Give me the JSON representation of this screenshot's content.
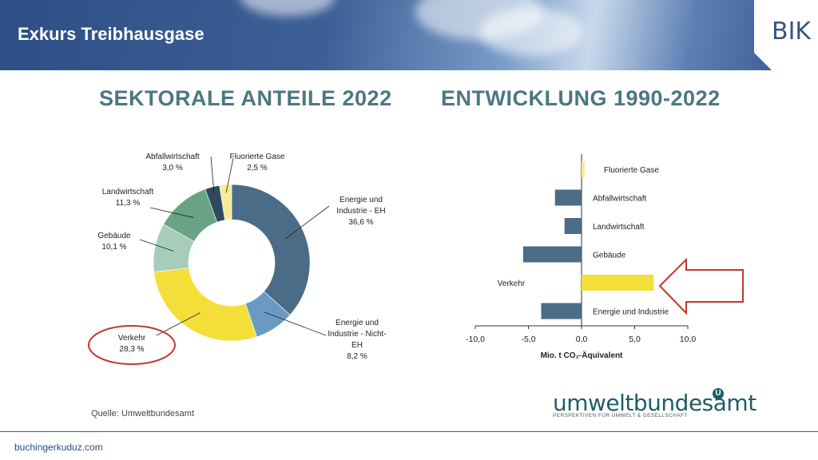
{
  "header": {
    "title": "Exkurs Treibhausgase",
    "logo": "BIK"
  },
  "left_title": "SEKTORALE ANTEILE 2022",
  "right_title": "ENTWICKLUNG 1990-2022",
  "source": "Quelle: Umweltbundesamt",
  "footer": {
    "url": "buchingerkuduz.com"
  },
  "uba": {
    "name": "umweltbundesamt",
    "mark": "U",
    "tagline": "PERSPEKTIVEN FÜR UMWELT & GESELLSCHAFT"
  },
  "colors": {
    "dark_blue": "#4a6c87",
    "light_blue": "#6a9ac4",
    "yellow": "#f4de3a",
    "light_green": "#a6cdb9",
    "green": "#68a386",
    "dark_slate": "#2f4a5f",
    "pale_yellow": "#f5ec9a",
    "highlight_red": "#c0392b"
  },
  "chart_data": [
    {
      "type": "pie",
      "title": "SEKTORALE ANTEILE 2022",
      "slices": [
        {
          "label": "Energie und Industrie - EH",
          "label_lines": [
            "Energie und",
            "Industrie - EH",
            "36,6 %"
          ],
          "value": 36.6,
          "color": "#4a6c87"
        },
        {
          "label": "Energie und Industrie - Nicht-EH",
          "label_lines": [
            "Energie und",
            "Industrie - Nicht-",
            "EH",
            "8,2 %"
          ],
          "value": 8.2,
          "color": "#6a9ac4"
        },
        {
          "label": "Verkehr",
          "label_lines": [
            "Verkehr",
            "28,3 %"
          ],
          "value": 28.3,
          "color": "#f4de3a"
        },
        {
          "label": "Gebäude",
          "label_lines": [
            "Gebäude",
            "10,1 %"
          ],
          "value": 10.1,
          "color": "#a6cdb9"
        },
        {
          "label": "Landwirtschaft",
          "label_lines": [
            "Landwirtschaft",
            "11,3 %"
          ],
          "value": 11.3,
          "color": "#68a386"
        },
        {
          "label": "Abfallwirtschaft",
          "label_lines": [
            "Abfallwirtschaft",
            "3,0 %"
          ],
          "value": 3.0,
          "color": "#2f4a5f"
        },
        {
          "label": "Fluorierte Gase",
          "label_lines": [
            "Fluorierte Gase",
            "2,5 %"
          ],
          "value": 2.5,
          "color": "#f5ec9a"
        }
      ],
      "donut": true,
      "highlight": "Verkehr"
    },
    {
      "type": "bar",
      "orientation": "horizontal",
      "title": "ENTWICKLUNG 1990-2022",
      "xlabel": "Mio. t CO₂-Äquivalent",
      "xlim": [
        -10,
        10
      ],
      "xticks": [
        "-10,0",
        "-5,0",
        "0,0",
        "5,0",
        "10,0"
      ],
      "categories": [
        "Fluorierte Gase",
        "Abfallwirtschaft",
        "Landwirtschaft",
        "Gebäude",
        "Verkehr",
        "Energie und Industrie"
      ],
      "values": [
        0.3,
        -2.5,
        -1.6,
        -5.5,
        6.8,
        -3.8
      ],
      "colors": [
        "#f5ec9a",
        "#4a6c87",
        "#4a6c87",
        "#4a6c87",
        "#f4de3a",
        "#4a6c87"
      ],
      "highlight": "Verkehr"
    }
  ]
}
